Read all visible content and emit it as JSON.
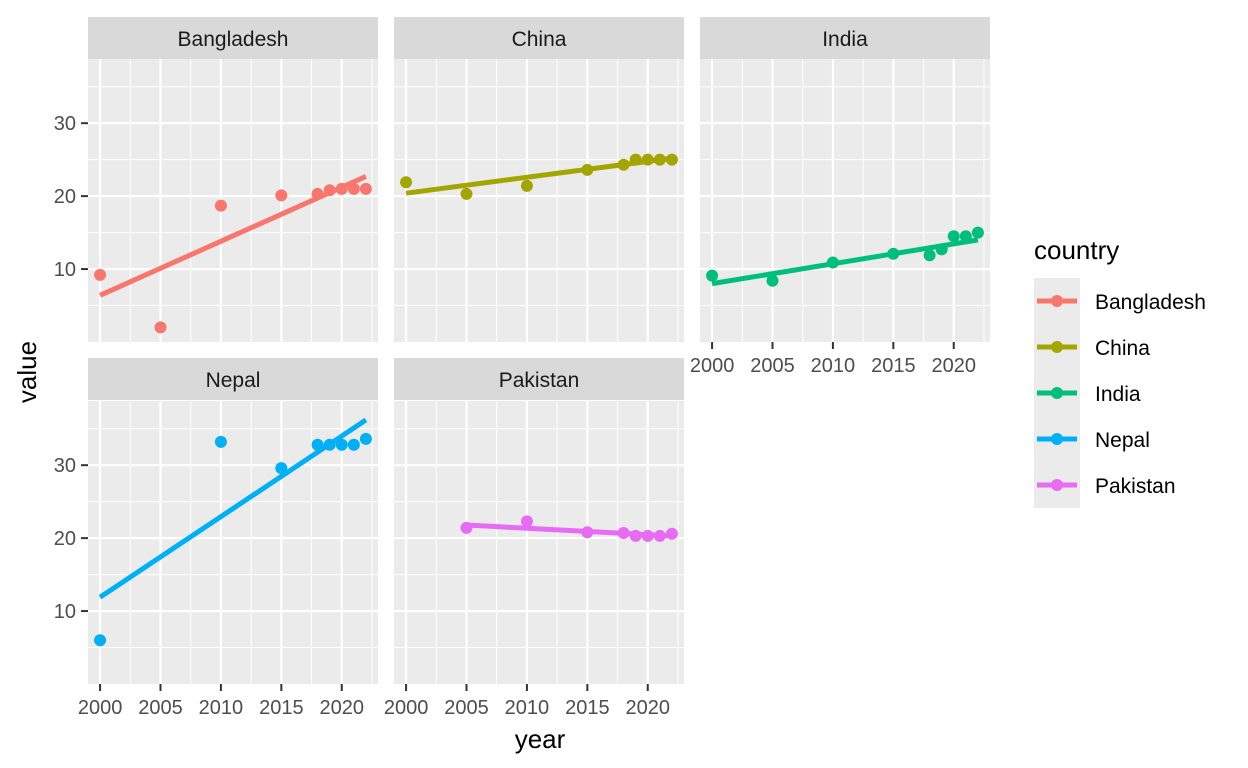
{
  "chart_data": {
    "type": "scatter",
    "facet_by": "country",
    "xlabel": "year",
    "ylabel": "value",
    "xlim": [
      1999,
      2023
    ],
    "ylim": [
      0,
      38.8
    ],
    "x_ticks": [
      2000,
      2005,
      2010,
      2015,
      2020
    ],
    "y_ticks": [
      10,
      20,
      30
    ],
    "grid": true,
    "trend_lines": "linear fit per facet",
    "legend": {
      "title": "country",
      "placement": "right",
      "entries": [
        "Bangladesh",
        "China",
        "India",
        "Nepal",
        "Pakistan"
      ]
    },
    "series": [
      {
        "name": "Bangladesh",
        "color": "#F8766D",
        "points": [
          [
            2000,
            9.2
          ],
          [
            2005,
            2.0
          ],
          [
            2010,
            18.7
          ],
          [
            2015,
            20.1
          ],
          [
            2018,
            20.3
          ],
          [
            2019,
            20.8
          ],
          [
            2020,
            21.0
          ],
          [
            2021,
            21.0
          ],
          [
            2022,
            21.0
          ]
        ],
        "trend": [
          [
            2000,
            6.4
          ],
          [
            2022,
            22.7
          ]
        ]
      },
      {
        "name": "China",
        "color": "#A3A500",
        "points": [
          [
            2000,
            21.9
          ],
          [
            2005,
            20.3
          ],
          [
            2010,
            21.4
          ],
          [
            2015,
            23.6
          ],
          [
            2018,
            24.3
          ],
          [
            2019,
            25.0
          ],
          [
            2020,
            25.0
          ],
          [
            2021,
            25.0
          ],
          [
            2022,
            25.0
          ]
        ],
        "trend": [
          [
            2000,
            20.4
          ],
          [
            2022,
            25.2
          ]
        ]
      },
      {
        "name": "India",
        "color": "#00BF7D",
        "points": [
          [
            2000,
            9.1
          ],
          [
            2005,
            8.4
          ],
          [
            2010,
            10.9
          ],
          [
            2015,
            12.1
          ],
          [
            2018,
            11.9
          ],
          [
            2019,
            12.7
          ],
          [
            2020,
            14.5
          ],
          [
            2021,
            14.5
          ],
          [
            2022,
            15.0
          ]
        ],
        "trend": [
          [
            2000,
            8.0
          ],
          [
            2022,
            14.0
          ]
        ]
      },
      {
        "name": "Nepal",
        "color": "#00B0F6",
        "points": [
          [
            2000,
            6.0
          ],
          [
            2010,
            33.2
          ],
          [
            2015,
            29.6
          ],
          [
            2018,
            32.8
          ],
          [
            2019,
            32.8
          ],
          [
            2020,
            32.8
          ],
          [
            2021,
            32.8
          ],
          [
            2022,
            33.6
          ]
        ],
        "trend": [
          [
            2000,
            11.9
          ],
          [
            2022,
            36.2
          ]
        ]
      },
      {
        "name": "Pakistan",
        "color": "#E76BF3",
        "points": [
          [
            2005,
            21.4
          ],
          [
            2010,
            22.3
          ],
          [
            2015,
            20.8
          ],
          [
            2018,
            20.7
          ],
          [
            2019,
            20.3
          ],
          [
            2020,
            20.3
          ],
          [
            2021,
            20.3
          ],
          [
            2022,
            20.6
          ]
        ],
        "trend": [
          [
            2005,
            21.8
          ],
          [
            2022,
            20.3
          ]
        ]
      }
    ]
  }
}
